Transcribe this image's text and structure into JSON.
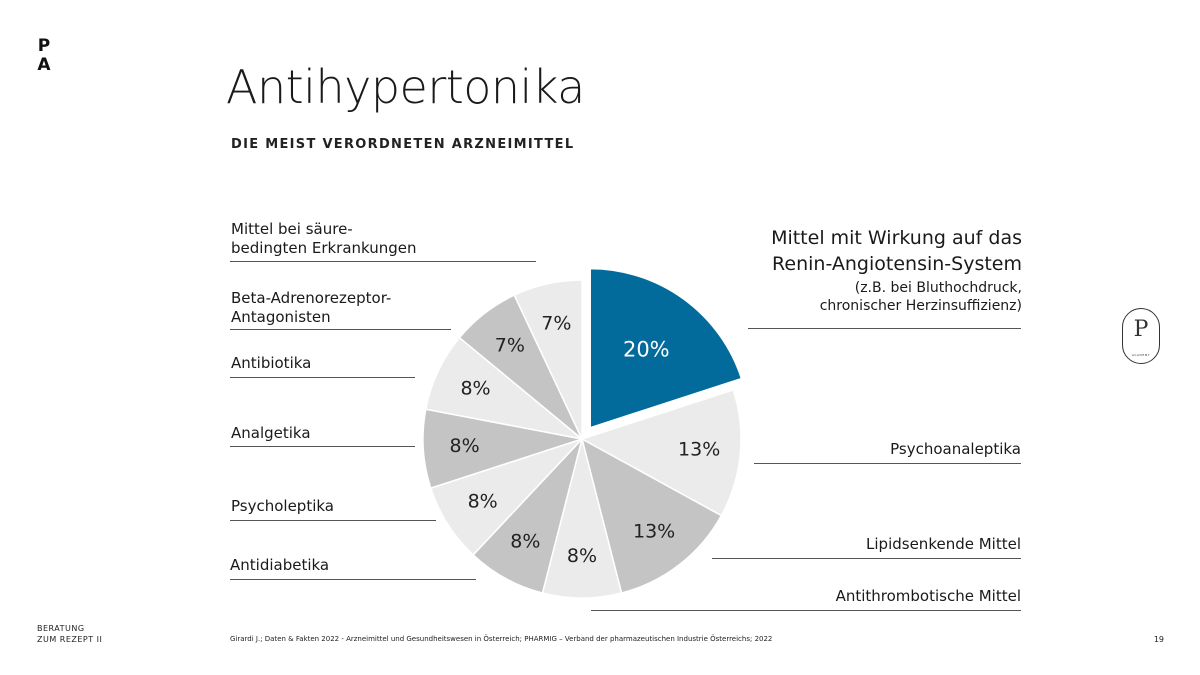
{
  "brand": {
    "logo_line1": "P",
    "logo_line2": "A",
    "badge_letter": "P",
    "badge_subtext": "ACADEMY"
  },
  "title": "Antihypertonika",
  "subtitle": "DIE MEIST VERORDNETEN ARZNEIMITTEL",
  "footer": {
    "left_line1": "BERATUNG",
    "left_line2": "ZUM REZEPT II",
    "source": "Girardi J.; Daten & Fakten 2022 - Arzneimittel und Gesundheitswesen in Österreich; PHARMIG – Verband der pharmazeutischen Industrie Österreichs; 2022",
    "page_number": "19"
  },
  "chart_data": {
    "type": "pie",
    "exploded_index": 0,
    "slices": [
      {
        "label": "Mittel mit Wirkung auf das Renin-Angiotensin-System",
        "label_line1": "Mittel mit Wirkung auf das",
        "label_line2": "Renin-Angiotensin-System",
        "note_line1": "(z.B. bei Bluthochdruck,",
        "note_line2": "chronischer Herzinsuffizienz)",
        "value": 20,
        "value_label": "20%",
        "color": "#036b9c",
        "text_color": "#ffffff"
      },
      {
        "label": "Psychoanaleptika",
        "value": 13,
        "value_label": "13%",
        "color": "#ebebeb",
        "text_color": "#222222"
      },
      {
        "label": "Lipidsenkende Mittel",
        "value": 13,
        "value_label": "13%",
        "color": "#c4c4c4",
        "text_color": "#222222"
      },
      {
        "label": "Antithrombotische Mittel",
        "value": 8,
        "value_label": "8%",
        "color": "#ebebeb",
        "text_color": "#222222"
      },
      {
        "label": "Antidiabetika",
        "value": 8,
        "value_label": "8%",
        "color": "#c4c4c4",
        "text_color": "#222222"
      },
      {
        "label": "Psycholeptika",
        "value": 8,
        "value_label": "8%",
        "color": "#ebebeb",
        "text_color": "#222222"
      },
      {
        "label": "Analgetika",
        "value": 8,
        "value_label": "8%",
        "color": "#c4c4c4",
        "text_color": "#222222"
      },
      {
        "label": "Antibiotika",
        "value": 8,
        "value_label": "8%",
        "color": "#ebebeb",
        "text_color": "#222222"
      },
      {
        "label": "Beta-Adrenorezeptor-Antagonisten",
        "label_line1": "Beta-Adrenorezeptor-",
        "label_line2": "Antagonisten",
        "value": 7,
        "value_label": "7%",
        "color": "#c4c4c4",
        "text_color": "#222222"
      },
      {
        "label": "Mittel bei säurebedingten Erkrankungen",
        "label_line1": "Mittel bei säure-",
        "label_line2": "bedingten Erkrankungen",
        "value": 7,
        "value_label": "7%",
        "color": "#ebebeb",
        "text_color": "#222222"
      }
    ]
  }
}
